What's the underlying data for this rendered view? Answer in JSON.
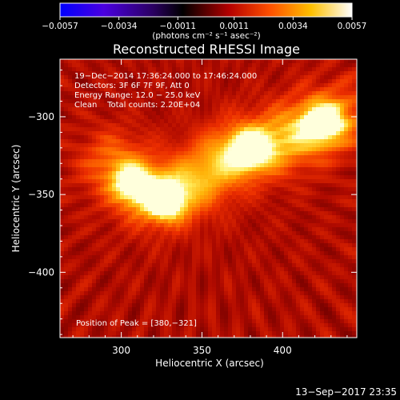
{
  "chart_data": {
    "type": "heatmap",
    "title": "Reconstructed RHESSI Image",
    "xlabel": "Heliocentric X (arcsec)",
    "ylabel": "Heliocentric Y (arcsec)",
    "xlim": [
      262,
      446
    ],
    "ylim": [
      -442,
      -263
    ],
    "x_ticks": [
      300,
      350,
      400
    ],
    "y_ticks": [
      -300,
      -350,
      -400
    ],
    "x_tick_labels": [
      "300",
      "350",
      "400"
    ],
    "y_tick_labels": [
      "−300",
      "−350",
      "−400"
    ],
    "colorbar": {
      "min": -0.0057,
      "max": 0.0057,
      "tick_values": [
        -0.0057,
        -0.0034,
        -0.0011,
        0.0011,
        0.0034,
        0.0057
      ],
      "tick_labels": [
        "−0.0057",
        "−0.0034",
        "−0.0011",
        "0.0011",
        "0.0034",
        "0.0057"
      ],
      "units_label": "(photons cm⁻² s⁻¹ asec⁻²)",
      "colors": [
        "#0000ff",
        "#6a00c8",
        "#000000",
        "#b40000",
        "#ff5000",
        "#ffb400",
        "#ffff64",
        "#ffffff"
      ]
    },
    "annotations": [
      "19−Dec−2014 17:36:24.000 to 17:46:24.000",
      "Detectors: 3F 6F 7F 9F, Att 0",
      "Energy Range: 12.0 − 25.0 keV",
      "Clean    Total counts: 2.20E+04"
    ],
    "peak_label": "Position of Peak = [380,−321]",
    "peak": [
      380,
      -321
    ],
    "sources": [
      {
        "x": 307,
        "y": -343,
        "intensity": 0.0048
      },
      {
        "x": 327,
        "y": -354,
        "intensity": 0.0057
      },
      {
        "x": 380,
        "y": -321,
        "intensity": 0.0057
      },
      {
        "x": 425,
        "y": -304,
        "intensity": 0.0056
      }
    ],
    "ridge": [
      {
        "x": 295,
        "y": -330
      },
      {
        "x": 315,
        "y": -350
      },
      {
        "x": 335,
        "y": -350
      },
      {
        "x": 355,
        "y": -335
      },
      {
        "x": 372,
        "y": -322
      },
      {
        "x": 395,
        "y": -318
      },
      {
        "x": 415,
        "y": -308
      },
      {
        "x": 435,
        "y": -300
      }
    ]
  },
  "footer": {
    "date": "13−Sep−2017 23:35"
  }
}
